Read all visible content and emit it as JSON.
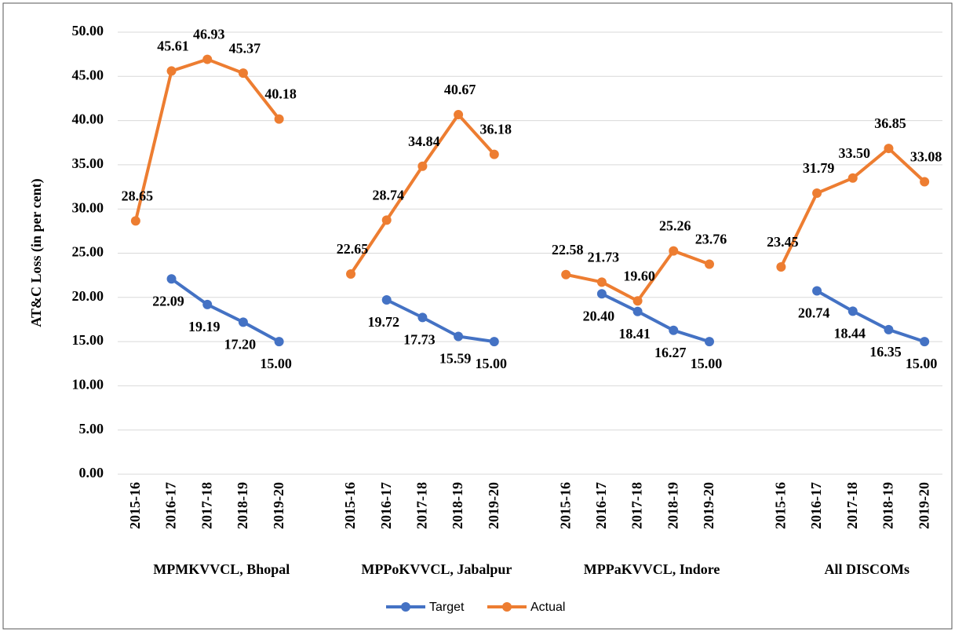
{
  "chart_data": {
    "type": "line",
    "y_label": "AT&C Loss (in per cent)",
    "categories": [
      "2015-16",
      "2016-17",
      "2017-18",
      "2018-19",
      "2019-20",
      null,
      "2015-16",
      "2016-17",
      "2017-18",
      "2018-19",
      "2019-20",
      null,
      "2015-16",
      "2016-17",
      "2017-18",
      "2018-19",
      "2019-20",
      null,
      "2015-16",
      "2016-17",
      "2017-18",
      "2018-19",
      "2019-20"
    ],
    "groups": [
      "MPMKVVCL, Bhopal",
      "MPPoKVVCL, Jabalpur",
      "MPPaKVVCL, Indore",
      "All DISCOMs"
    ],
    "series": [
      {
        "name": "Target",
        "color": "#4472c4",
        "values": [
          null,
          22.09,
          19.19,
          17.2,
          15,
          null,
          null,
          19.72,
          17.73,
          15.59,
          15,
          null,
          null,
          20.4,
          18.41,
          16.27,
          15,
          null,
          null,
          20.74,
          18.44,
          16.35,
          15
        ],
        "value_labels": [
          null,
          "22.09",
          "19.19",
          "17.20",
          "15.00",
          null,
          null,
          "19.72",
          "17.73",
          "15.59",
          "15.00",
          null,
          null,
          "20.40",
          "18.41",
          "16.27",
          "15.00",
          null,
          null,
          "20.74",
          "18.44",
          "16.35",
          "15.00"
        ]
      },
      {
        "name": "Actual",
        "color": "#ed7d31",
        "values": [
          28.65,
          45.61,
          46.93,
          45.37,
          40.18,
          null,
          22.65,
          28.74,
          34.84,
          40.67,
          36.18,
          null,
          22.58,
          21.73,
          19.6,
          25.26,
          23.76,
          null,
          23.45,
          31.79,
          33.5,
          36.85,
          33.08
        ],
        "value_labels": [
          "28.65",
          "45.61",
          "46.93",
          "45.37",
          "40.18",
          null,
          "22.65",
          "28.74",
          "34.84",
          "40.67",
          "36.18",
          null,
          "22.58",
          "21.73",
          "19.60",
          "25.26",
          "23.76",
          null,
          "23.45",
          "31.79",
          "33.50",
          "36.85",
          "33.08"
        ]
      }
    ],
    "ylim": [
      0,
      50
    ],
    "yticks": [
      {
        "value": 0,
        "label": "0.00"
      },
      {
        "value": 5,
        "label": "5.00"
      },
      {
        "value": 10,
        "label": "10.00"
      },
      {
        "value": 15,
        "label": "15.00"
      },
      {
        "value": 20,
        "label": "20.00"
      },
      {
        "value": 25,
        "label": "25.00"
      },
      {
        "value": 30,
        "label": "30.00"
      },
      {
        "value": 35,
        "label": "35.00"
      },
      {
        "value": 40,
        "label": "40.00"
      },
      {
        "value": 45,
        "label": "45.00"
      },
      {
        "value": 50,
        "label": "50.00"
      }
    ],
    "grid": true,
    "legend": "bottom"
  }
}
